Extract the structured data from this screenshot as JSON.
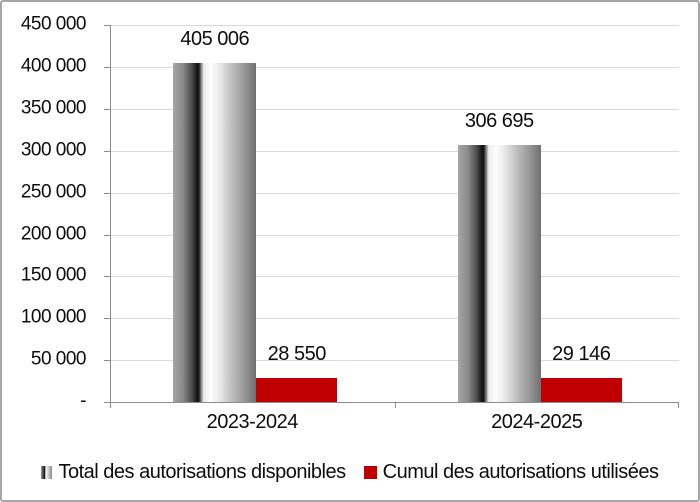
{
  "chart_data": {
    "type": "bar",
    "categories": [
      "2023-2024",
      "2024-2025"
    ],
    "series": [
      {
        "name": "Total des autorisations disponibles",
        "style": "gray-cylinder-gradient",
        "values": [
          405006,
          306695
        ],
        "value_labels": [
          "405 006",
          "306 695"
        ]
      },
      {
        "name": "Cumul des autorisations utilisées",
        "style": "solid-red",
        "values": [
          28550,
          29146
        ],
        "value_labels": [
          "28 550",
          "29 146"
        ]
      }
    ],
    "title": "",
    "xlabel": "",
    "ylabel": "",
    "ylim": [
      0,
      450000
    ],
    "y_ticks": [
      {
        "value": 450000,
        "label": "450 000"
      },
      {
        "value": 400000,
        "label": "400 000"
      },
      {
        "value": 350000,
        "label": "350 000"
      },
      {
        "value": 300000,
        "label": "300 000"
      },
      {
        "value": 250000,
        "label": "250 000"
      },
      {
        "value": 200000,
        "label": "200 000"
      },
      {
        "value": 150000,
        "label": "150 000"
      },
      {
        "value": 100000,
        "label": "100 000"
      },
      {
        "value": 50000,
        "label": "50 000"
      },
      {
        "value": 0,
        "label": "-"
      }
    ],
    "grid": "horizontal",
    "legend_position": "bottom",
    "colors": {
      "series_red": "#c00000",
      "gridline": "#d9d9d9",
      "axis": "#8c8c8c",
      "text": "#0d0d0d",
      "chart_border": "#a6a6a6",
      "background": "#ffffff"
    }
  }
}
